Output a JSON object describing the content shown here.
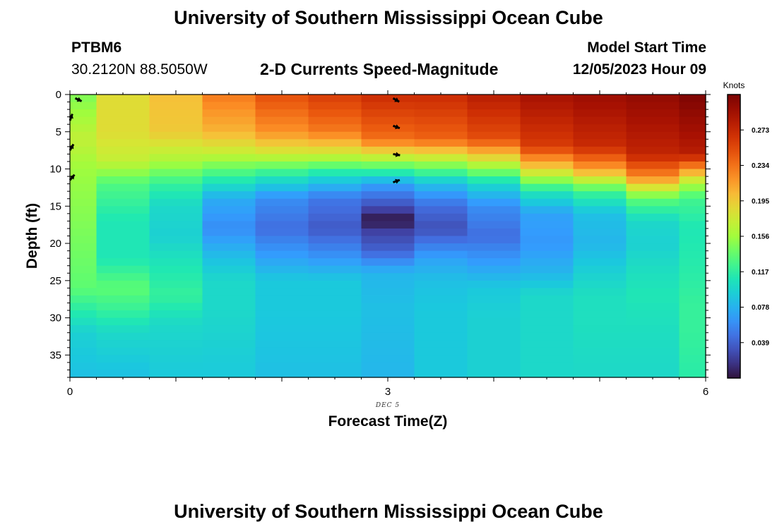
{
  "header": {
    "title": "University of Southern Mississippi Ocean Cube",
    "station_id": "PTBM6",
    "coordinates": "30.2120N  88.5050W",
    "subtitle": "2-D Currents Speed-Magnitude",
    "model_start_label": "Model Start Time",
    "model_start_value": "12/05/2023 Hour 09"
  },
  "footer": {
    "title": "University of Southern Mississippi Ocean Cube"
  },
  "chart_data": {
    "type": "heatmap",
    "title": "2-D Currents Speed-Magnitude",
    "xlabel": "Forecast Time(Z)",
    "ylabel": "Depth (ft)",
    "x_date_label": "DEC 5",
    "x_range": [
      0,
      6
    ],
    "x_ticks": [
      0,
      3,
      6
    ],
    "y_range": [
      0,
      38
    ],
    "y_inverted": true,
    "y_ticks": [
      0,
      5,
      10,
      15,
      20,
      25,
      30,
      35
    ],
    "colorbar": {
      "units": "Knots",
      "range": [
        0.0,
        0.312
      ],
      "tick_values": [
        0.039,
        0.078,
        0.117,
        0.156,
        0.195,
        0.234,
        0.273
      ],
      "colormap": "turbo"
    },
    "time_columns": [
      0,
      0.25,
      0.75,
      1.25,
      1.75,
      2.25,
      2.75,
      3.25,
      3.75,
      4.25,
      4.75,
      5.25,
      5.75
    ],
    "depth_rows": [
      0,
      1,
      2,
      3,
      4,
      5,
      6,
      7,
      8,
      9,
      10,
      11,
      12,
      13,
      14,
      15,
      16,
      17,
      18,
      19,
      20,
      21,
      22,
      23,
      24,
      25,
      26,
      27,
      28,
      29,
      30,
      31,
      32,
      33,
      34,
      35,
      36,
      37
    ],
    "speed_profiles": [
      [
        [
          0,
          0.145
        ],
        [
          6,
          0.17
        ],
        [
          10,
          0.155
        ],
        [
          14,
          0.15
        ],
        [
          22,
          0.14
        ],
        [
          26,
          0.135
        ],
        [
          29,
          0.115
        ],
        [
          32,
          0.095
        ],
        [
          38,
          0.085
        ]
      ],
      [
        [
          0,
          0.185
        ],
        [
          5,
          0.185
        ],
        [
          9,
          0.17
        ],
        [
          12,
          0.13
        ],
        [
          17,
          0.11
        ],
        [
          22,
          0.11
        ],
        [
          26,
          0.135
        ],
        [
          29,
          0.12
        ],
        [
          32,
          0.1
        ],
        [
          38,
          0.085
        ]
      ],
      [
        [
          0,
          0.2
        ],
        [
          5,
          0.195
        ],
        [
          9,
          0.16
        ],
        [
          12,
          0.12
        ],
        [
          15,
          0.1
        ],
        [
          19,
          0.095
        ],
        [
          23,
          0.11
        ],
        [
          27,
          0.12
        ],
        [
          31,
          0.1
        ],
        [
          38,
          0.09
        ]
      ],
      [
        [
          0,
          0.23
        ],
        [
          5,
          0.205
        ],
        [
          8,
          0.17
        ],
        [
          11,
          0.12
        ],
        [
          14,
          0.075
        ],
        [
          18,
          0.06
        ],
        [
          22,
          0.085
        ],
        [
          25,
          0.1
        ],
        [
          29,
          0.1
        ],
        [
          38,
          0.09
        ]
      ],
      [
        [
          0,
          0.25
        ],
        [
          5,
          0.22
        ],
        [
          8,
          0.175
        ],
        [
          11,
          0.11
        ],
        [
          14,
          0.06
        ],
        [
          18,
          0.045
        ],
        [
          22,
          0.07
        ],
        [
          25,
          0.09
        ],
        [
          29,
          0.09
        ],
        [
          38,
          0.085
        ]
      ],
      [
        [
          0,
          0.26
        ],
        [
          5,
          0.23
        ],
        [
          8,
          0.175
        ],
        [
          11,
          0.1
        ],
        [
          14,
          0.05
        ],
        [
          18,
          0.035
        ],
        [
          22,
          0.065
        ],
        [
          25,
          0.09
        ],
        [
          29,
          0.09
        ],
        [
          38,
          0.085
        ]
      ],
      [
        [
          0,
          0.27
        ],
        [
          6,
          0.235
        ],
        [
          9,
          0.155
        ],
        [
          12,
          0.07
        ],
        [
          15,
          0.03
        ],
        [
          17,
          0.0
        ],
        [
          18,
          0.02
        ],
        [
          21,
          0.04
        ],
        [
          24,
          0.08
        ],
        [
          29,
          0.085
        ],
        [
          38,
          0.08
        ]
      ],
      [
        [
          0,
          0.27
        ],
        [
          6,
          0.24
        ],
        [
          9,
          0.16
        ],
        [
          12,
          0.085
        ],
        [
          15,
          0.045
        ],
        [
          18,
          0.03
        ],
        [
          22,
          0.07
        ],
        [
          25,
          0.085
        ],
        [
          29,
          0.09
        ],
        [
          38,
          0.09
        ]
      ],
      [
        [
          0,
          0.28
        ],
        [
          6,
          0.25
        ],
        [
          9,
          0.175
        ],
        [
          12,
          0.1
        ],
        [
          15,
          0.06
        ],
        [
          19,
          0.045
        ],
        [
          23,
          0.07
        ],
        [
          26,
          0.09
        ],
        [
          30,
          0.095
        ],
        [
          38,
          0.095
        ]
      ],
      [
        [
          0,
          0.29
        ],
        [
          7,
          0.26
        ],
        [
          10,
          0.19
        ],
        [
          13,
          0.11
        ],
        [
          16,
          0.07
        ],
        [
          20,
          0.065
        ],
        [
          24,
          0.08
        ],
        [
          27,
          0.1
        ],
        [
          31,
          0.1
        ],
        [
          38,
          0.1
        ]
      ],
      [
        [
          0,
          0.295
        ],
        [
          7,
          0.27
        ],
        [
          10,
          0.215
        ],
        [
          13,
          0.125
        ],
        [
          16,
          0.085
        ],
        [
          20,
          0.08
        ],
        [
          24,
          0.095
        ],
        [
          27,
          0.105
        ],
        [
          31,
          0.105
        ],
        [
          38,
          0.1
        ]
      ],
      [
        [
          0,
          0.3
        ],
        [
          8,
          0.275
        ],
        [
          11,
          0.225
        ],
        [
          14,
          0.135
        ],
        [
          17,
          0.1
        ],
        [
          20,
          0.095
        ],
        [
          24,
          0.105
        ],
        [
          27,
          0.11
        ],
        [
          31,
          0.105
        ],
        [
          38,
          0.1
        ]
      ],
      [
        [
          0,
          0.31
        ],
        [
          8,
          0.28
        ],
        [
          10,
          0.22
        ],
        [
          12,
          0.16
        ],
        [
          14,
          0.125
        ],
        [
          18,
          0.11
        ],
        [
          24,
          0.115
        ],
        [
          28,
          0.12
        ],
        [
          32,
          0.12
        ],
        [
          38,
          0.115
        ]
      ]
    ],
    "vectors": [
      {
        "x": 0.05,
        "depth": 0.5,
        "angle": 25
      },
      {
        "x": 0.0,
        "depth": 3.5,
        "angle": -70
      },
      {
        "x": 0.0,
        "depth": 7.5,
        "angle": -60
      },
      {
        "x": 0.0,
        "depth": 11.5,
        "angle": -50
      },
      {
        "x": 3.05,
        "depth": 0.5,
        "angle": 30
      },
      {
        "x": 3.05,
        "depth": 4.2,
        "angle": 20
      },
      {
        "x": 3.05,
        "depth": 8.0,
        "angle": 10
      },
      {
        "x": 3.05,
        "depth": 11.8,
        "angle": -20
      }
    ]
  }
}
